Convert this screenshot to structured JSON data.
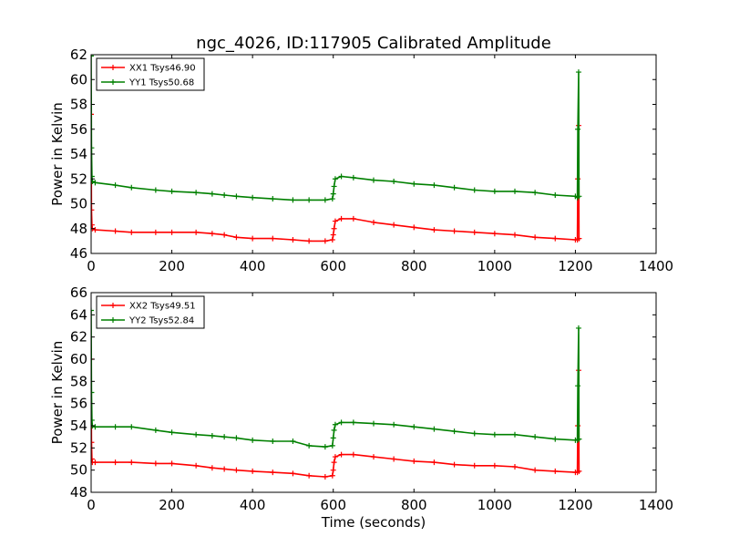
{
  "figure": {
    "title": "ngc_4026, ID:117905 Calibrated Amplitude",
    "xlabel": "Time (seconds)"
  },
  "chart_data": [
    {
      "type": "line",
      "title": "ngc_4026, ID:117905 Calibrated Amplitude",
      "xlabel": "",
      "ylabel": "Power in Kelvin",
      "xlim": [
        0,
        1400
      ],
      "ylim": [
        46,
        62
      ],
      "xticks": [
        0,
        200,
        400,
        600,
        800,
        1000,
        1200,
        1400
      ],
      "yticks": [
        46,
        48,
        50,
        52,
        54,
        56,
        58,
        60,
        62
      ],
      "grid": false,
      "legend_position": "upper-left",
      "series": [
        {
          "name": "XX1 Tsys46.90",
          "color": "#ff0000",
          "x": [
            0,
            1,
            2,
            3,
            10,
            60,
            100,
            160,
            200,
            260,
            300,
            330,
            360,
            400,
            450,
            500,
            540,
            580,
            598,
            600,
            602,
            605,
            620,
            650,
            700,
            750,
            800,
            850,
            900,
            950,
            1000,
            1050,
            1100,
            1150,
            1200,
            1205,
            1206,
            1208,
            1209
          ],
          "y": [
            57.2,
            49.5,
            48.3,
            48.0,
            47.9,
            47.8,
            47.7,
            47.7,
            47.7,
            47.7,
            47.6,
            47.5,
            47.3,
            47.2,
            47.2,
            47.1,
            47.0,
            47.0,
            47.1,
            47.5,
            48.0,
            48.6,
            48.8,
            48.8,
            48.5,
            48.3,
            48.1,
            47.9,
            47.8,
            47.7,
            47.6,
            47.5,
            47.3,
            47.2,
            47.1,
            47.1,
            52.0,
            56.3,
            47.2
          ]
        },
        {
          "name": "YY1 Tsys50.68",
          "color": "#008000",
          "x": [
            0,
            1,
            2,
            3,
            10,
            60,
            100,
            160,
            200,
            260,
            300,
            330,
            360,
            400,
            450,
            500,
            540,
            580,
            598,
            600,
            602,
            605,
            620,
            650,
            700,
            750,
            800,
            850,
            900,
            950,
            1000,
            1050,
            1100,
            1150,
            1200,
            1205,
            1206,
            1208,
            1209
          ],
          "y": [
            61.9,
            54.5,
            52.2,
            51.8,
            51.7,
            51.5,
            51.3,
            51.1,
            51.0,
            50.9,
            50.8,
            50.7,
            50.6,
            50.5,
            50.4,
            50.3,
            50.3,
            50.3,
            50.4,
            50.8,
            51.4,
            52.0,
            52.2,
            52.1,
            51.9,
            51.8,
            51.6,
            51.5,
            51.3,
            51.1,
            51.0,
            51.0,
            50.9,
            50.7,
            50.6,
            50.5,
            56.0,
            60.6,
            50.6
          ]
        }
      ]
    },
    {
      "type": "line",
      "title": "",
      "xlabel": "Time (seconds)",
      "ylabel": "Power in Kelvin",
      "xlim": [
        0,
        1400
      ],
      "ylim": [
        48,
        66
      ],
      "xticks": [
        0,
        200,
        400,
        600,
        800,
        1000,
        1200,
        1400
      ],
      "yticks": [
        48,
        50,
        52,
        54,
        56,
        58,
        60,
        62,
        64,
        66
      ],
      "grid": false,
      "legend_position": "upper-left",
      "series": [
        {
          "name": "XX2 Tsys49.51",
          "color": "#ff0000",
          "x": [
            0,
            1,
            2,
            3,
            10,
            60,
            100,
            160,
            200,
            260,
            300,
            330,
            360,
            400,
            450,
            500,
            540,
            580,
            598,
            600,
            602,
            605,
            620,
            650,
            700,
            750,
            800,
            850,
            900,
            950,
            1000,
            1050,
            1100,
            1150,
            1200,
            1205,
            1206,
            1208,
            1209
          ],
          "y": [
            60.0,
            52.5,
            51.0,
            50.7,
            50.7,
            50.7,
            50.7,
            50.6,
            50.6,
            50.4,
            50.2,
            50.1,
            50.0,
            49.9,
            49.8,
            49.7,
            49.5,
            49.4,
            49.5,
            50.0,
            50.7,
            51.2,
            51.4,
            51.4,
            51.2,
            51.0,
            50.8,
            50.7,
            50.5,
            50.4,
            50.4,
            50.3,
            50.0,
            49.9,
            49.8,
            49.8,
            54.0,
            59.0,
            49.9
          ]
        },
        {
          "name": "YY2 Tsys52.84",
          "color": "#008000",
          "x": [
            0,
            1,
            2,
            3,
            10,
            60,
            100,
            160,
            200,
            260,
            300,
            330,
            360,
            400,
            450,
            500,
            540,
            580,
            598,
            600,
            602,
            605,
            620,
            650,
            700,
            750,
            800,
            850,
            900,
            950,
            1000,
            1050,
            1100,
            1150,
            1200,
            1205,
            1206,
            1208,
            1209
          ],
          "y": [
            64.4,
            57.0,
            54.5,
            54.0,
            53.9,
            53.9,
            53.9,
            53.6,
            53.4,
            53.2,
            53.1,
            53.0,
            52.9,
            52.7,
            52.6,
            52.6,
            52.2,
            52.1,
            52.2,
            52.9,
            53.6,
            54.1,
            54.3,
            54.3,
            54.2,
            54.1,
            53.9,
            53.7,
            53.5,
            53.3,
            53.2,
            53.2,
            53.0,
            52.8,
            52.7,
            52.7,
            57.6,
            62.8,
            52.8
          ]
        }
      ]
    }
  ]
}
